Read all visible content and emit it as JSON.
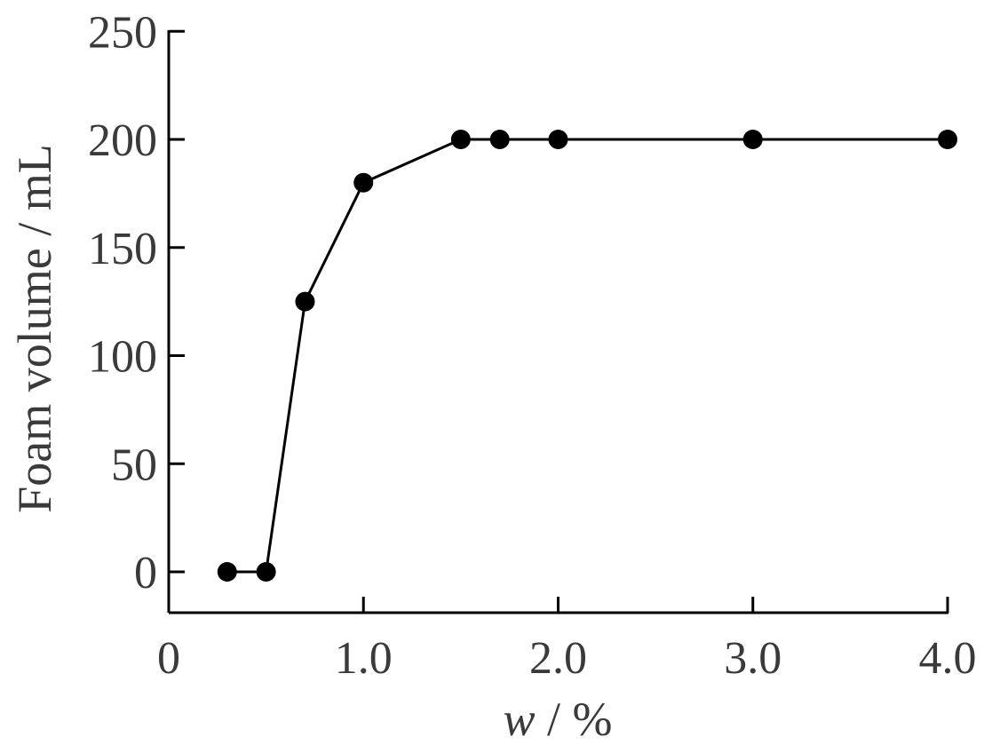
{
  "chart_data": {
    "type": "line",
    "xlabel_italic": "w",
    "xlabel_rest": " / %",
    "ylabel": "Foam volume / mL",
    "xlim": [
      0,
      4.0
    ],
    "ylim": [
      -20,
      250
    ],
    "x_ticks": [
      0,
      1.0,
      2.0,
      3.0,
      4.0
    ],
    "x_tick_labels": [
      "0",
      "1.0",
      "2.0",
      "3.0",
      "4.0"
    ],
    "y_ticks": [
      0,
      50,
      100,
      150,
      200,
      250
    ],
    "y_tick_labels": [
      "0",
      "50",
      "100",
      "150",
      "200",
      "250"
    ],
    "series": [
      {
        "x": [
          0.3,
          0.5,
          0.7,
          1.0,
          1.5,
          1.7,
          2.0,
          3.0,
          4.0
        ],
        "y": [
          0,
          0,
          125,
          180,
          200,
          200,
          200,
          200,
          200
        ]
      }
    ],
    "grid": false,
    "colors": {
      "line": "#000000",
      "marker": "#000000",
      "text": "#3a3a3a"
    }
  }
}
